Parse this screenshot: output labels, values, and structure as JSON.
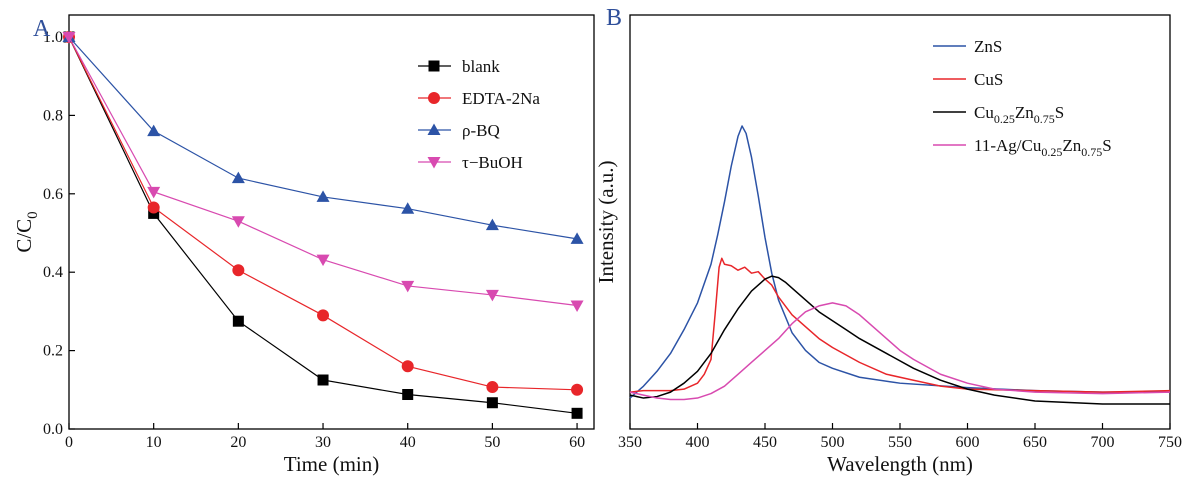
{
  "chart_data": [
    {
      "panel_label": "A",
      "type": "line",
      "xlabel": "Time (min)",
      "ylabel_main": "C/C",
      "ylabel_sub": "0",
      "xlim": [
        0,
        62
      ],
      "ylim": [
        0,
        1.0
      ],
      "xticks": [
        0,
        10,
        20,
        30,
        40,
        50,
        60
      ],
      "yticks": [
        0.0,
        0.2,
        0.4,
        0.6,
        0.8,
        1.0
      ],
      "x": [
        0,
        10,
        20,
        30,
        40,
        50,
        60
      ],
      "legend_placement": "top-right",
      "grid": false,
      "series": [
        {
          "name": "blank",
          "color": "#000000",
          "marker": "square",
          "values": [
            1.0,
            0.55,
            0.275,
            0.125,
            0.088,
            0.067,
            0.04
          ]
        },
        {
          "name": "EDTA-2Na",
          "color": "#e8262a",
          "marker": "circle",
          "values": [
            1.0,
            0.565,
            0.405,
            0.29,
            0.16,
            0.107,
            0.1
          ]
        },
        {
          "name": "ρ-BQ",
          "color": "#2c53a6",
          "marker": "triangle-up",
          "values": [
            1.0,
            0.76,
            0.64,
            0.592,
            0.562,
            0.52,
            0.485
          ]
        },
        {
          "name": "τ−BuOH",
          "color": "#d84ab0",
          "marker": "triangle-down",
          "values": [
            1.0,
            0.605,
            0.53,
            0.432,
            0.365,
            0.342,
            0.315
          ]
        }
      ]
    },
    {
      "panel_label": "B",
      "type": "line",
      "xlabel": "Wavelength (nm)",
      "ylabel": "Intensity (a.u.)",
      "xlim": [
        350,
        750
      ],
      "ylim": [
        0,
        1.0
      ],
      "xticks": [
        350,
        400,
        450,
        500,
        550,
        600,
        650,
        700,
        750
      ],
      "legend_placement": "top-right",
      "grid": false,
      "series": [
        {
          "name": "ZnS",
          "label_parts": [
            [
              "ZnS",
              ""
            ]
          ],
          "color": "#2c53a6",
          "x": [
            350,
            360,
            370,
            380,
            390,
            400,
            410,
            415,
            420,
            425,
            430,
            433,
            436,
            440,
            445,
            450,
            455,
            460,
            470,
            480,
            490,
            500,
            520,
            550,
            600,
            650,
            700,
            750
          ],
          "y": [
            0.02,
            0.06,
            0.11,
            0.17,
            0.25,
            0.34,
            0.47,
            0.57,
            0.68,
            0.8,
            0.9,
            0.935,
            0.91,
            0.83,
            0.7,
            0.56,
            0.44,
            0.35,
            0.24,
            0.18,
            0.14,
            0.12,
            0.09,
            0.07,
            0.055,
            0.045,
            0.04,
            0.04
          ]
        },
        {
          "name": "CuS",
          "label_parts": [
            [
              "CuS",
              ""
            ]
          ],
          "color": "#e8262a",
          "x": [
            350,
            360,
            370,
            380,
            390,
            400,
            405,
            410,
            413,
            416,
            418,
            420,
            425,
            430,
            435,
            440,
            445,
            450,
            455,
            460,
            470,
            480,
            490,
            500,
            520,
            540,
            560,
            580,
            600,
            650,
            700,
            750
          ],
          "y": [
            0.04,
            0.045,
            0.045,
            0.045,
            0.05,
            0.07,
            0.1,
            0.15,
            0.3,
            0.46,
            0.49,
            0.47,
            0.465,
            0.45,
            0.46,
            0.44,
            0.445,
            0.42,
            0.4,
            0.36,
            0.3,
            0.26,
            0.22,
            0.19,
            0.14,
            0.1,
            0.08,
            0.06,
            0.05,
            0.045,
            0.04,
            0.045
          ]
        },
        {
          "name": "Cu0.25Zn0.75S",
          "label_parts": [
            [
              "Cu",
              "0.25"
            ],
            [
              "Zn",
              "0.75"
            ],
            [
              "S",
              ""
            ]
          ],
          "color": "#000000",
          "x": [
            350,
            360,
            370,
            380,
            390,
            400,
            410,
            420,
            430,
            440,
            450,
            455,
            460,
            465,
            470,
            480,
            490,
            500,
            510,
            520,
            540,
            560,
            580,
            600,
            620,
            650,
            700,
            750
          ],
          "y": [
            0.03,
            0.02,
            0.025,
            0.04,
            0.07,
            0.11,
            0.17,
            0.25,
            0.32,
            0.38,
            0.42,
            0.43,
            0.425,
            0.41,
            0.39,
            0.35,
            0.31,
            0.28,
            0.25,
            0.22,
            0.17,
            0.12,
            0.08,
            0.05,
            0.03,
            0.01,
            0.0,
            0.0
          ]
        },
        {
          "name": "11-Ag/Cu0.25Zn0.75S",
          "label_parts": [
            [
              "11-Ag/Cu",
              "0.25"
            ],
            [
              "Zn",
              "0.75"
            ],
            [
              "S",
              ""
            ]
          ],
          "color": "#d84ab0",
          "x": [
            350,
            360,
            370,
            380,
            390,
            400,
            410,
            420,
            430,
            440,
            450,
            460,
            470,
            480,
            490,
            500,
            510,
            520,
            530,
            540,
            550,
            560,
            580,
            600,
            620,
            650,
            700,
            750
          ],
          "y": [
            0.04,
            0.03,
            0.02,
            0.015,
            0.015,
            0.02,
            0.035,
            0.06,
            0.1,
            0.14,
            0.18,
            0.22,
            0.27,
            0.31,
            0.33,
            0.34,
            0.33,
            0.3,
            0.26,
            0.22,
            0.18,
            0.15,
            0.1,
            0.07,
            0.05,
            0.04,
            0.035,
            0.04
          ]
        }
      ]
    }
  ]
}
